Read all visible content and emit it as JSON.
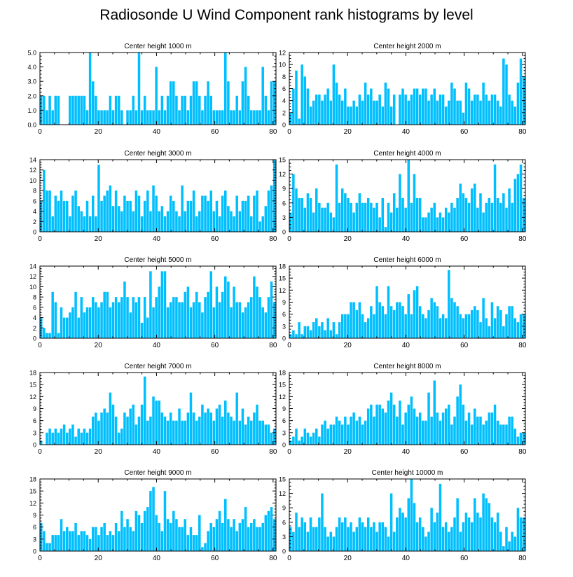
{
  "title": "Radiosonde U Wind Component rank histograms by level",
  "bar_color": "#00BFFF",
  "chart_data": [
    {
      "type": "bar",
      "title": "Center height 1000 m",
      "xlim": [
        0,
        81
      ],
      "ylim": [
        0,
        5
      ],
      "yticks": [
        0,
        1,
        2,
        3,
        4,
        5
      ],
      "ytick_labels": [
        "0.0",
        "1.0",
        "2.0",
        "3.0",
        "4.0",
        "5.0"
      ],
      "xticks": [
        0,
        20,
        40,
        60,
        80
      ],
      "values": [
        2,
        2,
        1,
        2,
        1,
        2,
        2,
        0,
        0,
        0,
        2,
        2,
        2,
        2,
        2,
        2,
        1,
        5,
        3,
        2,
        1,
        1,
        1,
        1,
        2,
        1,
        2,
        2,
        1,
        0,
        1,
        1,
        2,
        1,
        5,
        1,
        2,
        1,
        1,
        1,
        4,
        1,
        2,
        1,
        2,
        3,
        3,
        2,
        1,
        2,
        2,
        1,
        2,
        3,
        3,
        2,
        1,
        2,
        3,
        2,
        1,
        1,
        1,
        1,
        5,
        3,
        1,
        1,
        2,
        1,
        3,
        4,
        2,
        1,
        1,
        1,
        1,
        4,
        2,
        1,
        3,
        3
      ]
    },
    {
      "type": "bar",
      "title": "Center height 2000 m",
      "xlim": [
        0,
        81
      ],
      "ylim": [
        0,
        12
      ],
      "yticks": [
        0,
        2,
        4,
        6,
        8,
        10,
        12
      ],
      "ytick_labels": [
        "0",
        "2",
        "4",
        "6",
        "8",
        "10",
        "12"
      ],
      "xticks": [
        0,
        20,
        40,
        60,
        80
      ],
      "values": [
        2,
        6,
        9,
        1,
        10,
        8,
        6,
        3,
        4,
        5,
        5,
        4,
        5,
        6,
        4,
        10,
        7,
        5,
        4,
        6,
        3,
        3,
        4,
        3,
        5,
        4,
        7,
        5,
        6,
        4,
        4,
        5,
        3,
        7,
        6,
        3,
        5,
        0,
        5,
        6,
        5,
        4,
        5,
        6,
        6,
        5,
        6,
        6,
        4,
        5,
        6,
        4,
        5,
        5,
        3,
        4,
        7,
        6,
        4,
        4,
        2,
        7,
        6,
        4,
        5,
        5,
        4,
        7,
        5,
        4,
        5,
        5,
        4,
        3,
        11,
        10,
        5,
        4,
        3,
        7,
        11,
        8
      ]
    },
    {
      "type": "bar",
      "title": "Center height 3000 m",
      "xlim": [
        0,
        81
      ],
      "ylim": [
        0,
        14
      ],
      "yticks": [
        0,
        2,
        4,
        6,
        8,
        10,
        12,
        14
      ],
      "ytick_labels": [
        "0",
        "2",
        "4",
        "6",
        "8",
        "10",
        "12",
        "14"
      ],
      "xticks": [
        0,
        20,
        40,
        60,
        80
      ],
      "values": [
        6,
        12,
        8,
        8,
        3,
        7,
        6,
        8,
        6,
        6,
        3,
        7,
        8,
        5,
        4,
        3,
        6,
        3,
        7,
        3,
        13,
        6,
        7,
        8,
        9,
        5,
        8,
        5,
        4,
        7,
        6,
        6,
        4,
        8,
        7,
        3,
        6,
        8,
        4,
        9,
        7,
        4,
        5,
        3,
        4,
        7,
        6,
        4,
        3,
        9,
        4,
        6,
        6,
        8,
        3,
        4,
        7,
        7,
        6,
        8,
        4,
        6,
        3,
        7,
        8,
        5,
        4,
        3,
        7,
        4,
        6,
        6,
        7,
        3,
        7,
        8,
        2,
        3,
        5,
        8,
        9,
        14
      ]
    },
    {
      "type": "bar",
      "title": "Center height 4000 m",
      "xlim": [
        0,
        81
      ],
      "ylim": [
        0,
        15
      ],
      "yticks": [
        0,
        3,
        6,
        9,
        12,
        15
      ],
      "ytick_labels": [
        "0",
        "3",
        "6",
        "9",
        "12",
        "15"
      ],
      "xticks": [
        0,
        20,
        40,
        60,
        80
      ],
      "values": [
        4,
        12,
        9,
        7,
        7,
        5,
        8,
        7,
        4,
        9,
        6,
        5,
        5,
        6,
        4,
        3,
        14,
        6,
        9,
        8,
        7,
        6,
        4,
        6,
        8,
        6,
        6,
        7,
        6,
        5,
        6,
        3,
        7,
        1,
        6,
        4,
        8,
        5,
        12,
        7,
        5,
        15,
        6,
        12,
        7,
        7,
        3,
        3,
        4,
        5,
        6,
        3,
        4,
        3,
        5,
        4,
        6,
        5,
        7,
        10,
        8,
        7,
        6,
        9,
        10,
        5,
        8,
        4,
        6,
        7,
        6,
        14,
        7,
        6,
        8,
        5,
        9,
        6,
        11,
        12,
        14,
        7
      ]
    },
    {
      "type": "bar",
      "title": "Center height 5000 m",
      "xlim": [
        0,
        81
      ],
      "ylim": [
        0,
        14
      ],
      "yticks": [
        0,
        2,
        4,
        6,
        8,
        10,
        12,
        14
      ],
      "ytick_labels": [
        "0",
        "2",
        "4",
        "6",
        "8",
        "10",
        "12",
        "14"
      ],
      "xticks": [
        0,
        20,
        40,
        60,
        80
      ],
      "values": [
        4,
        2,
        1,
        1,
        9,
        7,
        1,
        6,
        4,
        4,
        5,
        6,
        9,
        4,
        8,
        5,
        6,
        6,
        8,
        7,
        6,
        7,
        9,
        9,
        6,
        7,
        8,
        7,
        8,
        11,
        8,
        5,
        8,
        7,
        8,
        3,
        8,
        4,
        13,
        6,
        8,
        10,
        13,
        13,
        6,
        7,
        8,
        8,
        7,
        7,
        9,
        10,
        6,
        7,
        9,
        7,
        5,
        8,
        9,
        13,
        6,
        10,
        7,
        9,
        12,
        11,
        6,
        10,
        7,
        7,
        5,
        6,
        7,
        8,
        12,
        10,
        8,
        6,
        5,
        8,
        11,
        7
      ]
    },
    {
      "type": "bar",
      "title": "Center height 6000 m",
      "xlim": [
        0,
        81
      ],
      "ylim": [
        0,
        18
      ],
      "yticks": [
        0,
        3,
        6,
        9,
        12,
        15,
        18
      ],
      "ytick_labels": [
        "0",
        "3",
        "6",
        "9",
        "12",
        "15",
        "18"
      ],
      "xticks": [
        0,
        20,
        40,
        60,
        80
      ],
      "values": [
        1,
        2,
        1,
        4,
        1,
        3,
        3,
        2,
        4,
        5,
        3,
        4,
        2,
        5,
        2,
        4,
        1,
        4,
        6,
        6,
        6,
        9,
        9,
        7,
        9,
        6,
        4,
        5,
        8,
        6,
        13,
        9,
        8,
        6,
        13,
        8,
        7,
        9,
        9,
        8,
        6,
        11,
        6,
        12,
        13,
        8,
        6,
        5,
        7,
        10,
        9,
        8,
        5,
        6,
        5,
        17,
        10,
        9,
        8,
        6,
        5,
        6,
        6,
        7,
        8,
        7,
        4,
        10,
        5,
        3,
        9,
        5,
        8,
        7,
        3,
        6,
        8,
        8,
        5,
        4,
        6,
        6
      ]
    },
    {
      "type": "bar",
      "title": "Center height 7000 m",
      "xlim": [
        0,
        81
      ],
      "ylim": [
        0,
        18
      ],
      "yticks": [
        0,
        3,
        6,
        9,
        12,
        15,
        18
      ],
      "ytick_labels": [
        "0",
        "3",
        "6",
        "9",
        "12",
        "15",
        "18"
      ],
      "xticks": [
        0,
        20,
        40,
        60,
        80
      ],
      "values": [
        1,
        0,
        3,
        4,
        3,
        4,
        3,
        4,
        5,
        3,
        4,
        5,
        2,
        4,
        3,
        4,
        3,
        4,
        7,
        8,
        6,
        8,
        9,
        8,
        13,
        10,
        7,
        3,
        4,
        8,
        7,
        9,
        10,
        5,
        7,
        10,
        17,
        6,
        7,
        12,
        11,
        11,
        8,
        7,
        6,
        8,
        6,
        6,
        9,
        6,
        6,
        8,
        13,
        8,
        6,
        7,
        10,
        8,
        9,
        8,
        6,
        9,
        10,
        7,
        11,
        8,
        7,
        6,
        13,
        6,
        9,
        5,
        7,
        6,
        8,
        10,
        6,
        6,
        5,
        5,
        3,
        4
      ]
    },
    {
      "type": "bar",
      "title": "Center height 8000 m",
      "xlim": [
        0,
        81
      ],
      "ylim": [
        0,
        18
      ],
      "yticks": [
        0,
        3,
        6,
        9,
        12,
        15,
        18
      ],
      "ytick_labels": [
        "0",
        "3",
        "6",
        "9",
        "12",
        "15",
        "18"
      ],
      "xticks": [
        0,
        20,
        40,
        60,
        80
      ],
      "values": [
        1,
        2,
        4,
        1,
        2,
        4,
        3,
        2,
        3,
        4,
        2,
        5,
        6,
        4,
        5,
        5,
        7,
        6,
        5,
        7,
        5,
        7,
        8,
        6,
        7,
        5,
        6,
        9,
        10,
        7,
        10,
        10,
        9,
        8,
        11,
        13,
        10,
        7,
        11,
        5,
        8,
        10,
        12,
        9,
        7,
        8,
        6,
        6,
        13,
        7,
        16,
        8,
        6,
        8,
        9,
        10,
        5,
        7,
        12,
        15,
        10,
        6,
        8,
        5,
        9,
        7,
        7,
        5,
        6,
        8,
        8,
        10,
        6,
        5,
        5,
        5,
        7,
        7,
        4,
        2,
        3,
        3
      ]
    },
    {
      "type": "bar",
      "title": "Center height 9000 m",
      "xlim": [
        0,
        81
      ],
      "ylim": [
        0,
        18
      ],
      "yticks": [
        0,
        3,
        6,
        9,
        12,
        15,
        18
      ],
      "ytick_labels": [
        "0",
        "3",
        "6",
        "9",
        "12",
        "15",
        "18"
      ],
      "xticks": [
        0,
        20,
        40,
        60,
        80
      ],
      "values": [
        7,
        5,
        2,
        2,
        4,
        4,
        4,
        8,
        5,
        6,
        5,
        5,
        7,
        4,
        5,
        5,
        4,
        3,
        6,
        6,
        4,
        6,
        7,
        4,
        5,
        4,
        7,
        5,
        10,
        6,
        8,
        6,
        5,
        10,
        9,
        7,
        10,
        11,
        15,
        16,
        9,
        7,
        5,
        15,
        8,
        7,
        10,
        8,
        6,
        6,
        8,
        4,
        6,
        4,
        4,
        9,
        1,
        2,
        5,
        7,
        6,
        8,
        10,
        7,
        13,
        8,
        6,
        8,
        5,
        7,
        8,
        11,
        6,
        7,
        8,
        6,
        6,
        7,
        9,
        10,
        11,
        8
      ]
    },
    {
      "type": "bar",
      "title": "Center height 10000 m",
      "xlim": [
        0,
        81
      ],
      "ylim": [
        0,
        15
      ],
      "yticks": [
        0,
        3,
        6,
        9,
        12,
        15
      ],
      "ytick_labels": [
        "0",
        "3",
        "6",
        "9",
        "12",
        "15"
      ],
      "xticks": [
        0,
        20,
        40,
        60,
        80
      ],
      "values": [
        5,
        4,
        8,
        5,
        7,
        6,
        4,
        7,
        5,
        5,
        7,
        12,
        5,
        3,
        4,
        3,
        5,
        7,
        6,
        7,
        5,
        6,
        4,
        5,
        7,
        6,
        5,
        7,
        5,
        6,
        4,
        6,
        6,
        5,
        3,
        12,
        4,
        7,
        9,
        8,
        7,
        11,
        15,
        10,
        6,
        7,
        5,
        3,
        4,
        9,
        6,
        8,
        14,
        5,
        6,
        4,
        5,
        7,
        11,
        4,
        6,
        8,
        7,
        6,
        11,
        8,
        7,
        12,
        11,
        10,
        7,
        6,
        8,
        4,
        1,
        5,
        2,
        4,
        3,
        9,
        7,
        7
      ]
    }
  ]
}
